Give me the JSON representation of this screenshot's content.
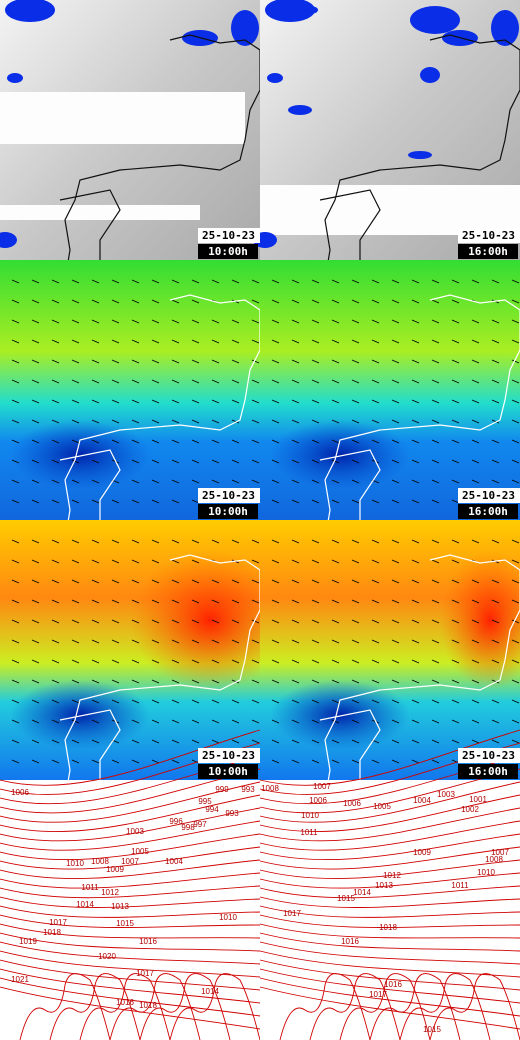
{
  "panels": [
    {
      "date": "25-10-23",
      "time": "10:00h"
    },
    {
      "date": "25-10-23",
      "time": "16:00h"
    },
    {
      "date": "25-10-23",
      "time": "10:00h"
    },
    {
      "date": "25-10-23",
      "time": "16:00h"
    },
    {
      "date": "25-10-23",
      "time": "10:00h"
    },
    {
      "date": "25-10-23",
      "time": "16:00h"
    }
  ],
  "isobars": {
    "left": [
      1006,
      999,
      993,
      995,
      994,
      993,
      997,
      998,
      996,
      1003,
      1005,
      1004,
      1007,
      1008,
      1009,
      1010,
      1011,
      1012,
      1014,
      1013,
      1015,
      1016,
      1010,
      1017,
      1018,
      1019,
      1020,
      1021,
      1017,
      1016,
      1018,
      1014
    ],
    "right": [
      1008,
      1007,
      1006,
      1006,
      1005,
      1004,
      1003,
      1001,
      1002,
      1010,
      1011,
      1009,
      1007,
      1008,
      1010,
      1011,
      1012,
      1013,
      1014,
      1015,
      1017,
      1018,
      1016,
      1016,
      1017,
      1015
    ]
  }
}
